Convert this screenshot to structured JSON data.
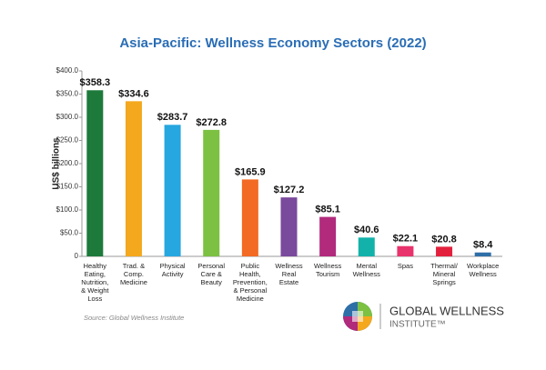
{
  "chart_data": {
    "type": "bar",
    "title": "Asia-Pacific: Wellness Economy Sectors (2022)",
    "y_label": "US$ billions",
    "categories": [
      "Healthy\nEating,\nNutrition,\n& Weight\nLoss",
      "Trad. &\nComp.\nMedicine",
      "Physical\nActivity",
      "Personal\nCare &\nBeauty",
      "Public\nHealth,\nPrevention,\n& Personal\nMedicine",
      "Wellness\nReal\nEstate",
      "Wellness\nTourism",
      "Mental\nWellness",
      "Spas",
      "Thermal/\nMineral\nSprings",
      "Workplace\nWellness"
    ],
    "values": [
      358.3,
      334.6,
      283.7,
      272.8,
      165.9,
      127.2,
      85.1,
      40.6,
      22.1,
      20.8,
      8.4
    ],
    "value_labels": [
      "$358.3",
      "$334.6",
      "$283.7",
      "$272.8",
      "$165.9",
      "$127.2",
      "$85.1",
      "$40.6",
      "$22.1",
      "$20.8",
      "$8.4"
    ],
    "colors": [
      "#1d7a3a",
      "#f4a81d",
      "#26a7e0",
      "#7cc142",
      "#f26a23",
      "#7a4a9d",
      "#b12a7c",
      "#12b2aa",
      "#e8336c",
      "#e3213d",
      "#2e6fa8"
    ],
    "ylim": [
      0,
      400
    ],
    "yticks": [
      0,
      {
        "value": 50,
        "label": "$50.0"
      },
      {
        "value": 100,
        "label": "$100.0"
      },
      {
        "value": 150,
        "label": "$150.0"
      },
      {
        "value": 200,
        "label": "$200.0"
      },
      {
        "value": 250,
        "label": "$250.0"
      },
      {
        "value": 300,
        "label": "$300.0"
      },
      {
        "value": 350,
        "label": "$350.0"
      },
      {
        "value": 400,
        "label": "$400.0"
      }
    ],
    "source": "Source: Global Wellness Institute",
    "logo": {
      "line1": "GLOBAL WELLNESS",
      "line2": "INSTITUTE™"
    }
  }
}
